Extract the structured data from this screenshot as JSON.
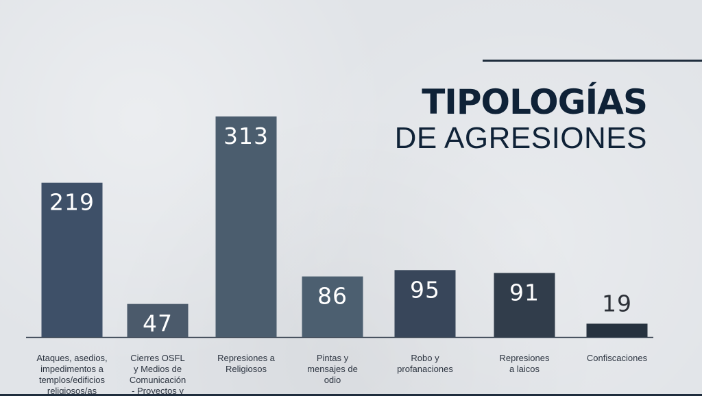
{
  "title": {
    "main": "TIPOLOGÍAS",
    "sub": "DE AGRESIONES"
  },
  "colors": {
    "background": "#e1e4e8",
    "title": "#0f2237",
    "axis": "#3b4654",
    "bars": [
      "#3e5068",
      "#4b5a6b",
      "#4b5d6e",
      "#4c5f70",
      "#38465a",
      "#313d4b",
      "#26323f"
    ]
  },
  "chart_data": {
    "type": "bar",
    "title": "TIPOLOGÍAS DE AGRESIONES",
    "xlabel": "",
    "ylabel": "",
    "ylim": [
      0,
      313
    ],
    "grid": false,
    "legend": "none",
    "categories": [
      [
        "Ataques, asedios,",
        "impedimentos a",
        "templos/edificios",
        "religiosos/as"
      ],
      [
        "Cierres OSFL",
        "y Medios de",
        "Comunicación",
        "- Proyectos y"
      ],
      [
        "Represiones a",
        "Religiosos"
      ],
      [
        "Pintas y",
        "mensajes de",
        "odio"
      ],
      [
        "Robo y",
        "profanaciones"
      ],
      [
        "Represiones",
        "a laicos"
      ],
      [
        "Confiscaciones"
      ]
    ],
    "values": [
      219,
      47,
      313,
      86,
      95,
      91,
      19
    ]
  }
}
